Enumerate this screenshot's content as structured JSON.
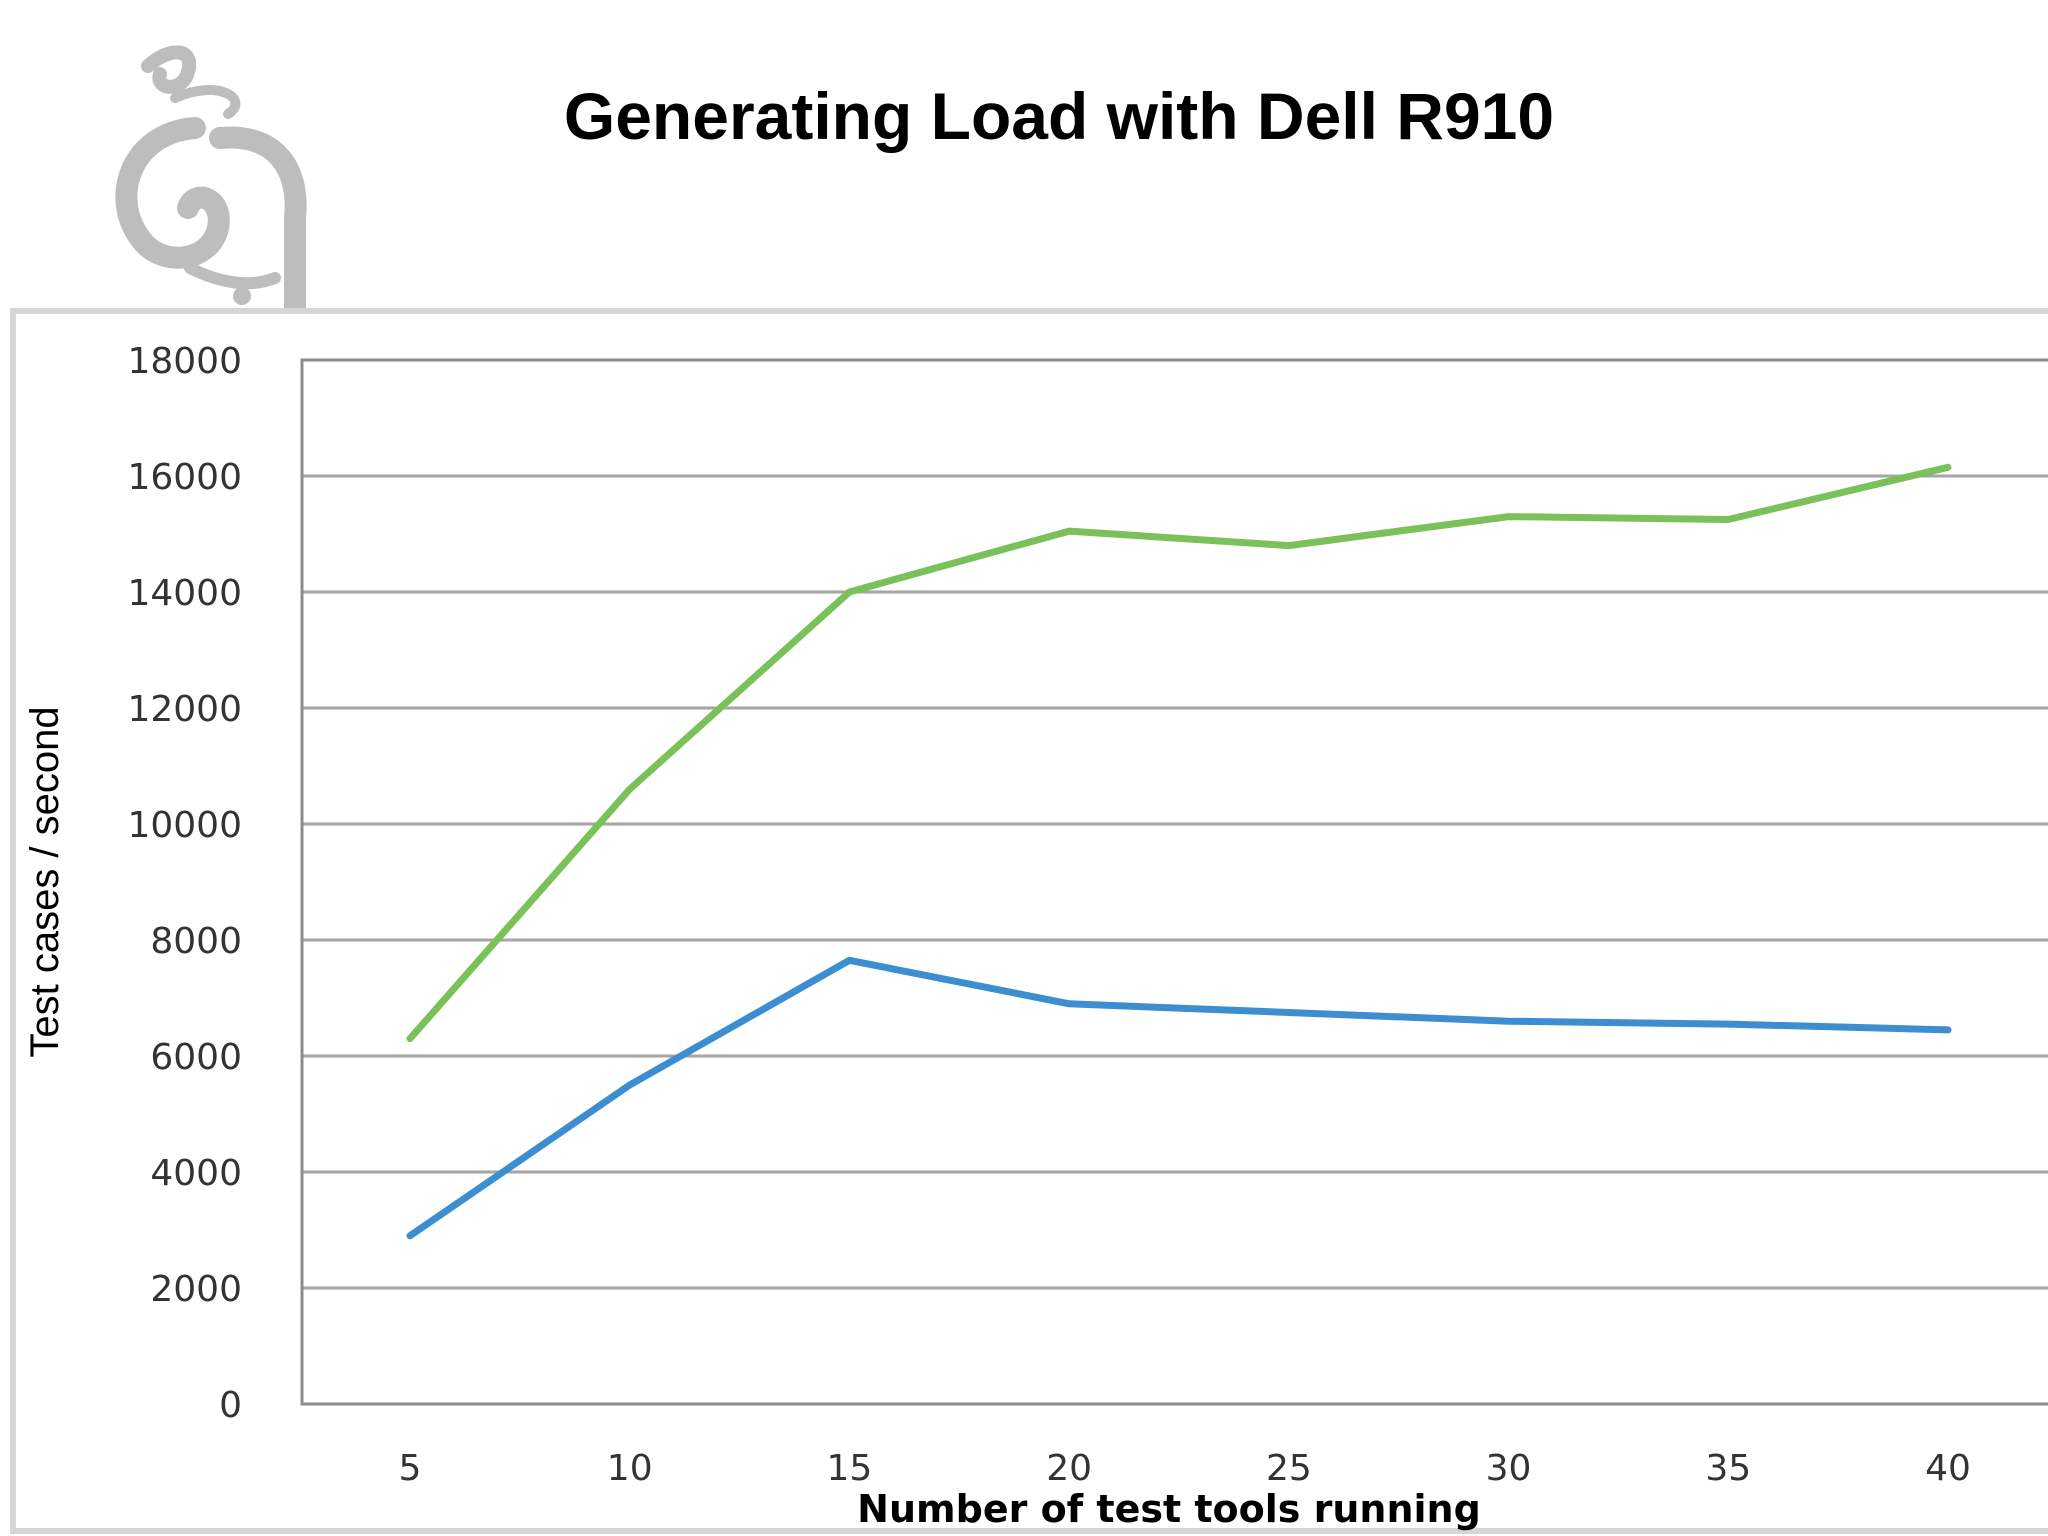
{
  "slide": {
    "title": "Generating Load with Dell R910",
    "logo_icon": "calligraphic-glyph-logo"
  },
  "chart_data": {
    "type": "line",
    "x": [
      5,
      10,
      15,
      20,
      25,
      30,
      35,
      40
    ],
    "series": [
      {
        "color": "#7ac15a",
        "values": [
          6300,
          10600,
          14000,
          15050,
          14800,
          15300,
          15250,
          16150
        ]
      },
      {
        "color": "#3c8ed0",
        "values": [
          2900,
          5500,
          7650,
          6900,
          6750,
          6600,
          6550,
          6450
        ]
      }
    ],
    "title": "",
    "xlabel": "Number of test tools running",
    "ylabel": "Test cases / second",
    "ylim": [
      0,
      18000
    ],
    "yticks": [
      0,
      2000,
      4000,
      6000,
      8000,
      10000,
      12000,
      14000,
      16000,
      18000
    ],
    "xticks": [
      "5",
      "10",
      "15",
      "20",
      "25",
      "30",
      "35",
      "40"
    ],
    "grid": true,
    "legend": "none"
  }
}
